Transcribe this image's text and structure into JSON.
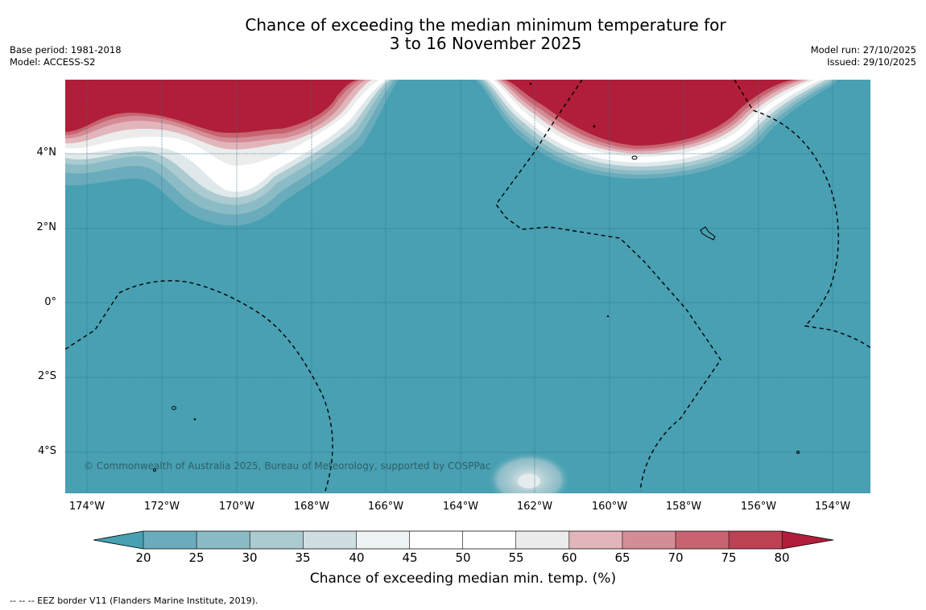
{
  "header": {
    "title_line1": "Chance of exceeding the median minimum temperature for",
    "title_line2": "3 to 16 November 2025",
    "base_period": "Base period: 1981-2018",
    "model": "Model: ACCESS-S2",
    "model_run": "Model run: 27/10/2025",
    "issued": "Issued: 29/10/2025"
  },
  "map": {
    "lat_labels": [
      "4°N",
      "2°N",
      "0°",
      "2°S",
      "4°S"
    ],
    "lon_labels": [
      "174°W",
      "172°W",
      "170°W",
      "168°W",
      "166°W",
      "164°W",
      "162°W",
      "160°W",
      "158°W",
      "156°W",
      "154°W"
    ],
    "copyright": "© Commonwealth of Australia 2025, Bureau of Meteorology, supported by COSPPac",
    "colors": {
      "ocean_background": "#48a0b2",
      "high_probability": "#b01e3a",
      "gridline": "#2b6f80",
      "eez_border": "#000000"
    }
  },
  "colorbar": {
    "title": "Chance of exceeding median min. temp. (%)",
    "tick_labels": [
      "20",
      "25",
      "30",
      "35",
      "40",
      "45",
      "50",
      "55",
      "60",
      "65",
      "70",
      "75",
      "80"
    ],
    "colors": [
      "#48a0b2",
      "#6aacbc",
      "#8bbcc6",
      "#abcbd1",
      "#cfdfe1",
      "#eef3f4",
      "#ffffff",
      "#ffffff",
      "#ececec",
      "#e2b5bb",
      "#d48c96",
      "#c7646f",
      "#bc4253",
      "#b01e3a"
    ]
  },
  "legend": {
    "footnote": "--  --  -- EEZ border V11 (Flanders Marine Institute, 2019)."
  }
}
